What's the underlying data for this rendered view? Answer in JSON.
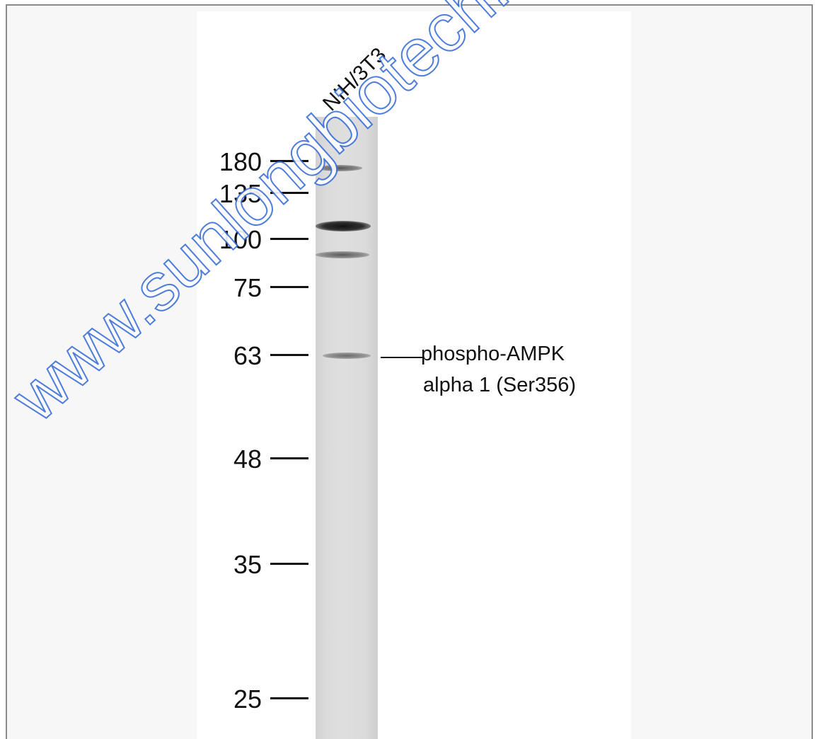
{
  "lane_label": "NIH/3T3",
  "markers": [
    {
      "label": "180"
    },
    {
      "label": "135"
    },
    {
      "label": "100"
    },
    {
      "label": "75"
    },
    {
      "label": "63"
    },
    {
      "label": "48"
    },
    {
      "label": "35"
    },
    {
      "label": "25"
    }
  ],
  "target": {
    "line1": "phospho-AMPK",
    "line2": "alpha 1 (Ser356)"
  },
  "watermark": "www.sunlongbiotech.c",
  "colors": {
    "watermark": "#3b6fd8",
    "frame_border": "#8c8c8c",
    "background": "#f7f7f7",
    "lane": "#dcdcdc"
  }
}
